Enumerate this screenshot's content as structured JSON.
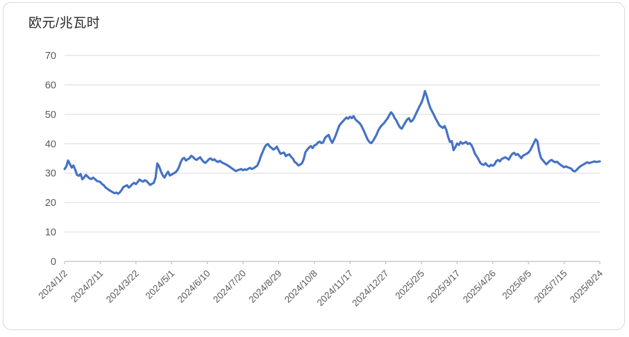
{
  "chart_data": {
    "type": "line",
    "title": "欧元/兆瓦时",
    "ylabel": "欧元/兆瓦时",
    "xlabel": "",
    "legend": "none",
    "grid": "horizontal",
    "ylim": [
      0,
      70
    ],
    "y_ticks": [
      0,
      10,
      20,
      30,
      40,
      50,
      60,
      70
    ],
    "x_tick_labels": [
      "2024/1/2",
      "2024/2/11",
      "2024/3/22",
      "2024/5/1",
      "2024/6/10",
      "2024/7/20",
      "2024/8/29",
      "2024/10/8",
      "2024/11/17",
      "2024/12/27",
      "2025/2/5",
      "2025/3/17",
      "2025/4/26",
      "2025/6/5",
      "2025/7/15",
      "2025/8/24"
    ],
    "x_tick_days": [
      0,
      40,
      80,
      120,
      160,
      200,
      240,
      280,
      320,
      360,
      400,
      440,
      480,
      520,
      560,
      600
    ],
    "x_range_days": [
      0,
      600
    ],
    "colors": {
      "line": "#4472C4",
      "grid": "#d9d9d9",
      "axis": "#bfbfbf",
      "tick_text": "#595959",
      "title_text": "#262626",
      "frame_border": "#d9d9d9"
    },
    "series": [
      {
        "points": [
          [
            0,
            31.4
          ],
          [
            2,
            32.3
          ],
          [
            4,
            34.3
          ],
          [
            6,
            33.1
          ],
          [
            8,
            31.9
          ],
          [
            10,
            32.6
          ],
          [
            12,
            31.1
          ],
          [
            14,
            29.4
          ],
          [
            16,
            29.1
          ],
          [
            18,
            29.7
          ],
          [
            20,
            27.9
          ],
          [
            22,
            28.6
          ],
          [
            24,
            29.4
          ],
          [
            26,
            28.8
          ],
          [
            28,
            28.2
          ],
          [
            30,
            28.0
          ],
          [
            32,
            28.5
          ],
          [
            34,
            28.0
          ],
          [
            36,
            27.4
          ],
          [
            38,
            27.2
          ],
          [
            40,
            27.0
          ],
          [
            42,
            26.3
          ],
          [
            44,
            25.9
          ],
          [
            46,
            25.1
          ],
          [
            48,
            24.7
          ],
          [
            50,
            24.2
          ],
          [
            52,
            23.9
          ],
          [
            54,
            23.5
          ],
          [
            56,
            23.2
          ],
          [
            58,
            23.4
          ],
          [
            60,
            23.0
          ],
          [
            62,
            23.5
          ],
          [
            64,
            24.3
          ],
          [
            66,
            25.3
          ],
          [
            68,
            25.6
          ],
          [
            70,
            25.9
          ],
          [
            72,
            25.1
          ],
          [
            74,
            25.6
          ],
          [
            76,
            26.3
          ],
          [
            78,
            26.7
          ],
          [
            80,
            26.3
          ],
          [
            82,
            27.0
          ],
          [
            84,
            27.8
          ],
          [
            86,
            27.4
          ],
          [
            88,
            27.1
          ],
          [
            90,
            27.6
          ],
          [
            92,
            27.3
          ],
          [
            94,
            26.6
          ],
          [
            96,
            26.0
          ],
          [
            98,
            26.4
          ],
          [
            100,
            26.7
          ],
          [
            102,
            28.5
          ],
          [
            104,
            33.3
          ],
          [
            106,
            32.3
          ],
          [
            108,
            30.6
          ],
          [
            110,
            29.3
          ],
          [
            112,
            28.5
          ],
          [
            114,
            29.6
          ],
          [
            116,
            30.5
          ],
          [
            118,
            29.2
          ],
          [
            120,
            29.5
          ],
          [
            122,
            29.9
          ],
          [
            124,
            30.2
          ],
          [
            126,
            30.8
          ],
          [
            128,
            31.9
          ],
          [
            130,
            33.6
          ],
          [
            132,
            34.8
          ],
          [
            134,
            35.2
          ],
          [
            136,
            34.3
          ],
          [
            138,
            34.7
          ],
          [
            140,
            35.1
          ],
          [
            142,
            35.9
          ],
          [
            144,
            35.5
          ],
          [
            146,
            34.8
          ],
          [
            148,
            34.5
          ],
          [
            150,
            35.0
          ],
          [
            152,
            35.4
          ],
          [
            154,
            34.5
          ],
          [
            156,
            33.8
          ],
          [
            158,
            33.5
          ],
          [
            160,
            34.1
          ],
          [
            162,
            34.8
          ],
          [
            164,
            35.0
          ],
          [
            166,
            34.4
          ],
          [
            168,
            34.7
          ],
          [
            170,
            34.1
          ],
          [
            172,
            33.8
          ],
          [
            174,
            34.2
          ],
          [
            176,
            33.7
          ],
          [
            178,
            33.4
          ],
          [
            180,
            33.1
          ],
          [
            182,
            32.8
          ],
          [
            184,
            32.4
          ],
          [
            186,
            32.0
          ],
          [
            188,
            31.5
          ],
          [
            190,
            31.1
          ],
          [
            192,
            30.7
          ],
          [
            194,
            31.0
          ],
          [
            196,
            31.2
          ],
          [
            198,
            31.4
          ],
          [
            200,
            31.0
          ],
          [
            202,
            31.3
          ],
          [
            204,
            31.1
          ],
          [
            206,
            31.5
          ],
          [
            208,
            31.8
          ],
          [
            210,
            31.4
          ],
          [
            212,
            31.7
          ],
          [
            214,
            32.1
          ],
          [
            216,
            32.6
          ],
          [
            218,
            33.9
          ],
          [
            220,
            35.7
          ],
          [
            222,
            37.2
          ],
          [
            224,
            38.6
          ],
          [
            226,
            39.6
          ],
          [
            228,
            39.9
          ],
          [
            230,
            39.0
          ],
          [
            232,
            38.6
          ],
          [
            234,
            38.0
          ],
          [
            236,
            38.4
          ],
          [
            238,
            39.0
          ],
          [
            240,
            37.7
          ],
          [
            242,
            36.6
          ],
          [
            244,
            36.8
          ],
          [
            246,
            37.0
          ],
          [
            248,
            35.8
          ],
          [
            250,
            36.2
          ],
          [
            252,
            36.4
          ],
          [
            254,
            35.5
          ],
          [
            256,
            34.9
          ],
          [
            258,
            33.8
          ],
          [
            260,
            33.4
          ],
          [
            262,
            32.6
          ],
          [
            264,
            32.9
          ],
          [
            266,
            33.3
          ],
          [
            268,
            34.7
          ],
          [
            270,
            37.1
          ],
          [
            272,
            38.0
          ],
          [
            274,
            38.7
          ],
          [
            276,
            39.2
          ],
          [
            278,
            38.5
          ],
          [
            280,
            39.4
          ],
          [
            282,
            39.7
          ],
          [
            284,
            40.4
          ],
          [
            286,
            40.7
          ],
          [
            288,
            40.2
          ],
          [
            290,
            40.5
          ],
          [
            292,
            42.0
          ],
          [
            294,
            42.6
          ],
          [
            296,
            43.0
          ],
          [
            298,
            41.4
          ],
          [
            300,
            40.3
          ],
          [
            302,
            41.5
          ],
          [
            304,
            42.9
          ],
          [
            306,
            44.6
          ],
          [
            308,
            46.2
          ],
          [
            310,
            47.0
          ],
          [
            312,
            47.6
          ],
          [
            314,
            48.3
          ],
          [
            316,
            48.9
          ],
          [
            318,
            48.5
          ],
          [
            320,
            49.2
          ],
          [
            322,
            48.7
          ],
          [
            324,
            49.4
          ],
          [
            326,
            48.3
          ],
          [
            328,
            47.7
          ],
          [
            330,
            47.2
          ],
          [
            332,
            46.5
          ],
          [
            334,
            45.3
          ],
          [
            336,
            44.0
          ],
          [
            338,
            42.6
          ],
          [
            340,
            41.3
          ],
          [
            342,
            40.5
          ],
          [
            344,
            40.2
          ],
          [
            346,
            41.1
          ],
          [
            348,
            42.1
          ],
          [
            350,
            43.3
          ],
          [
            352,
            44.7
          ],
          [
            354,
            45.7
          ],
          [
            356,
            46.4
          ],
          [
            358,
            47.0
          ],
          [
            360,
            47.8
          ],
          [
            362,
            48.6
          ],
          [
            364,
            49.7
          ],
          [
            366,
            50.7
          ],
          [
            368,
            50.0
          ],
          [
            370,
            48.7
          ],
          [
            372,
            47.9
          ],
          [
            374,
            46.6
          ],
          [
            376,
            45.5
          ],
          [
            378,
            45.1
          ],
          [
            380,
            46.2
          ],
          [
            382,
            47.3
          ],
          [
            384,
            48.2
          ],
          [
            386,
            48.7
          ],
          [
            388,
            47.5
          ],
          [
            390,
            47.9
          ],
          [
            392,
            48.9
          ],
          [
            394,
            50.3
          ],
          [
            396,
            51.5
          ],
          [
            398,
            52.8
          ],
          [
            400,
            53.9
          ],
          [
            402,
            55.6
          ],
          [
            404,
            57.9
          ],
          [
            406,
            56.2
          ],
          [
            408,
            53.9
          ],
          [
            410,
            52.1
          ],
          [
            412,
            51.0
          ],
          [
            414,
            49.8
          ],
          [
            416,
            48.5
          ],
          [
            418,
            47.5
          ],
          [
            420,
            46.3
          ],
          [
            422,
            45.8
          ],
          [
            424,
            45.4
          ],
          [
            426,
            46.0
          ],
          [
            428,
            44.6
          ],
          [
            430,
            42.3
          ],
          [
            432,
            40.6
          ],
          [
            434,
            40.9
          ],
          [
            436,
            37.8
          ],
          [
            438,
            38.8
          ],
          [
            440,
            40.1
          ],
          [
            442,
            39.6
          ],
          [
            444,
            40.6
          ],
          [
            446,
            40.0
          ],
          [
            448,
            40.3
          ],
          [
            450,
            40.6
          ],
          [
            452,
            39.9
          ],
          [
            454,
            40.2
          ],
          [
            456,
            39.6
          ],
          [
            458,
            38.3
          ],
          [
            460,
            36.6
          ],
          [
            462,
            35.7
          ],
          [
            464,
            34.7
          ],
          [
            466,
            33.5
          ],
          [
            468,
            33.0
          ],
          [
            470,
            32.8
          ],
          [
            472,
            33.4
          ],
          [
            474,
            32.6
          ],
          [
            476,
            32.3
          ],
          [
            478,
            32.8
          ],
          [
            480,
            32.5
          ],
          [
            482,
            33.0
          ],
          [
            484,
            34.1
          ],
          [
            486,
            34.5
          ],
          [
            488,
            34.0
          ],
          [
            490,
            34.8
          ],
          [
            492,
            35.1
          ],
          [
            494,
            35.4
          ],
          [
            496,
            35.0
          ],
          [
            498,
            34.6
          ],
          [
            500,
            35.8
          ],
          [
            502,
            36.6
          ],
          [
            504,
            36.9
          ],
          [
            506,
            36.2
          ],
          [
            508,
            36.5
          ],
          [
            510,
            35.8
          ],
          [
            512,
            35.1
          ],
          [
            514,
            36.0
          ],
          [
            516,
            36.3
          ],
          [
            518,
            36.6
          ],
          [
            520,
            37.0
          ],
          [
            522,
            37.8
          ],
          [
            524,
            39.0
          ],
          [
            526,
            40.2
          ],
          [
            528,
            41.5
          ],
          [
            530,
            40.9
          ],
          [
            532,
            37.4
          ],
          [
            534,
            35.2
          ],
          [
            536,
            34.4
          ],
          [
            538,
            33.7
          ],
          [
            540,
            33.0
          ],
          [
            542,
            33.6
          ],
          [
            544,
            34.2
          ],
          [
            546,
            34.5
          ],
          [
            548,
            34.0
          ],
          [
            550,
            33.7
          ],
          [
            552,
            33.9
          ],
          [
            554,
            33.3
          ],
          [
            556,
            32.8
          ],
          [
            558,
            32.4
          ],
          [
            560,
            32.0
          ],
          [
            562,
            32.3
          ],
          [
            564,
            32.0
          ],
          [
            566,
            31.8
          ],
          [
            568,
            31.5
          ],
          [
            570,
            30.8
          ],
          [
            572,
            30.6
          ],
          [
            574,
            31.1
          ],
          [
            576,
            31.8
          ],
          [
            578,
            32.3
          ],
          [
            580,
            32.7
          ],
          [
            582,
            33.0
          ],
          [
            584,
            33.4
          ],
          [
            586,
            33.7
          ],
          [
            588,
            33.4
          ],
          [
            590,
            33.6
          ],
          [
            592,
            33.8
          ],
          [
            594,
            34.0
          ],
          [
            596,
            33.8
          ],
          [
            598,
            33.9
          ],
          [
            600,
            34.0
          ]
        ]
      }
    ]
  }
}
